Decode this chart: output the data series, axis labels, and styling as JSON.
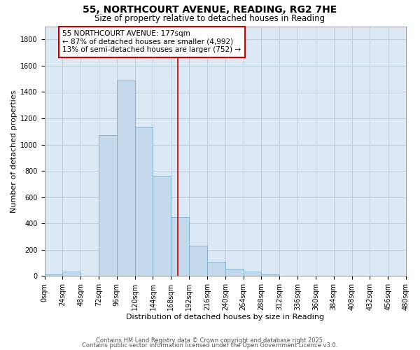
{
  "title": "55, NORTHCOURT AVENUE, READING, RG2 7HE",
  "subtitle": "Size of property relative to detached houses in Reading",
  "xlabel": "Distribution of detached houses by size in Reading",
  "ylabel": "Number of detached properties",
  "bar_values": [
    10,
    35,
    0,
    1070,
    1490,
    1130,
    760,
    450,
    230,
    110,
    55,
    35,
    15,
    0,
    0,
    0,
    0,
    0,
    0,
    0
  ],
  "bin_edges": [
    0,
    24,
    48,
    72,
    96,
    120,
    144,
    168,
    192,
    216,
    240,
    264,
    288,
    312,
    336,
    360,
    384,
    408,
    432,
    456,
    480
  ],
  "tick_labels": [
    "0sqm",
    "24sqm",
    "48sqm",
    "72sqm",
    "96sqm",
    "120sqm",
    "144sqm",
    "168sqm",
    "192sqm",
    "216sqm",
    "240sqm",
    "264sqm",
    "288sqm",
    "312sqm",
    "336sqm",
    "360sqm",
    "384sqm",
    "408sqm",
    "432sqm",
    "456sqm",
    "480sqm"
  ],
  "bar_color": "#c5d9ed",
  "bar_edgecolor": "#7aaecc",
  "vline_x": 177,
  "vline_color": "#cc0000",
  "annotation_title": "55 NORTHCOURT AVENUE: 177sqm",
  "annotation_line1": "← 87% of detached houses are smaller (4,992)",
  "annotation_line2": "13% of semi-detached houses are larger (752) →",
  "annotation_box_edgecolor": "#cc0000",
  "annotation_box_facecolor": "#ffffff",
  "ylim": [
    0,
    1900
  ],
  "yticks": [
    0,
    200,
    400,
    600,
    800,
    1000,
    1200,
    1400,
    1600,
    1800
  ],
  "footer1": "Contains HM Land Registry data © Crown copyright and database right 2025.",
  "footer2": "Contains public sector information licensed under the Open Government Licence v3.0.",
  "background_color": "#ffffff",
  "plot_bg_color": "#dce9f5",
  "grid_color": "#b8cfe0",
  "title_fontsize": 10,
  "subtitle_fontsize": 8.5,
  "axis_label_fontsize": 8,
  "tick_fontsize": 7,
  "annotation_fontsize": 7.5,
  "footer_fontsize": 6
}
